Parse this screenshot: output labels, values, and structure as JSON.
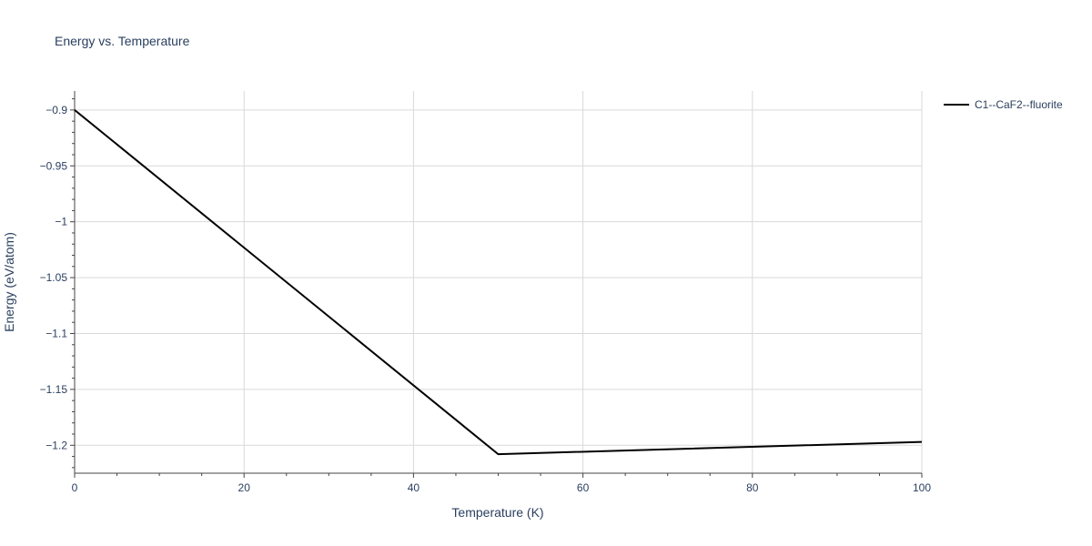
{
  "chart_data": {
    "type": "line",
    "title": "Energy vs. Temperature",
    "xlabel": "Temperature (K)",
    "ylabel": "Energy (eV/atom)",
    "xlim": [
      0,
      100
    ],
    "ylim": [
      -1.225,
      -0.883
    ],
    "xticks": [
      0,
      20,
      40,
      60,
      80,
      100
    ],
    "xtick_labels": [
      "0",
      "20",
      "40",
      "60",
      "80",
      "100"
    ],
    "yticks": [
      -0.9,
      -0.95,
      -1,
      -1.05,
      -1.1,
      -1.15,
      -1.2
    ],
    "ytick_labels": [
      "−0.9",
      "−0.95",
      "−1",
      "−1.05",
      "−1.1",
      "−1.15",
      "−1.2"
    ],
    "grid": true,
    "legend_position": "top-right",
    "series": [
      {
        "name": "C1--CaF2--fluorite",
        "color": "#000000",
        "x": [
          0,
          50,
          100
        ],
        "y": [
          -0.9,
          -1.208,
          -1.197
        ]
      }
    ]
  }
}
